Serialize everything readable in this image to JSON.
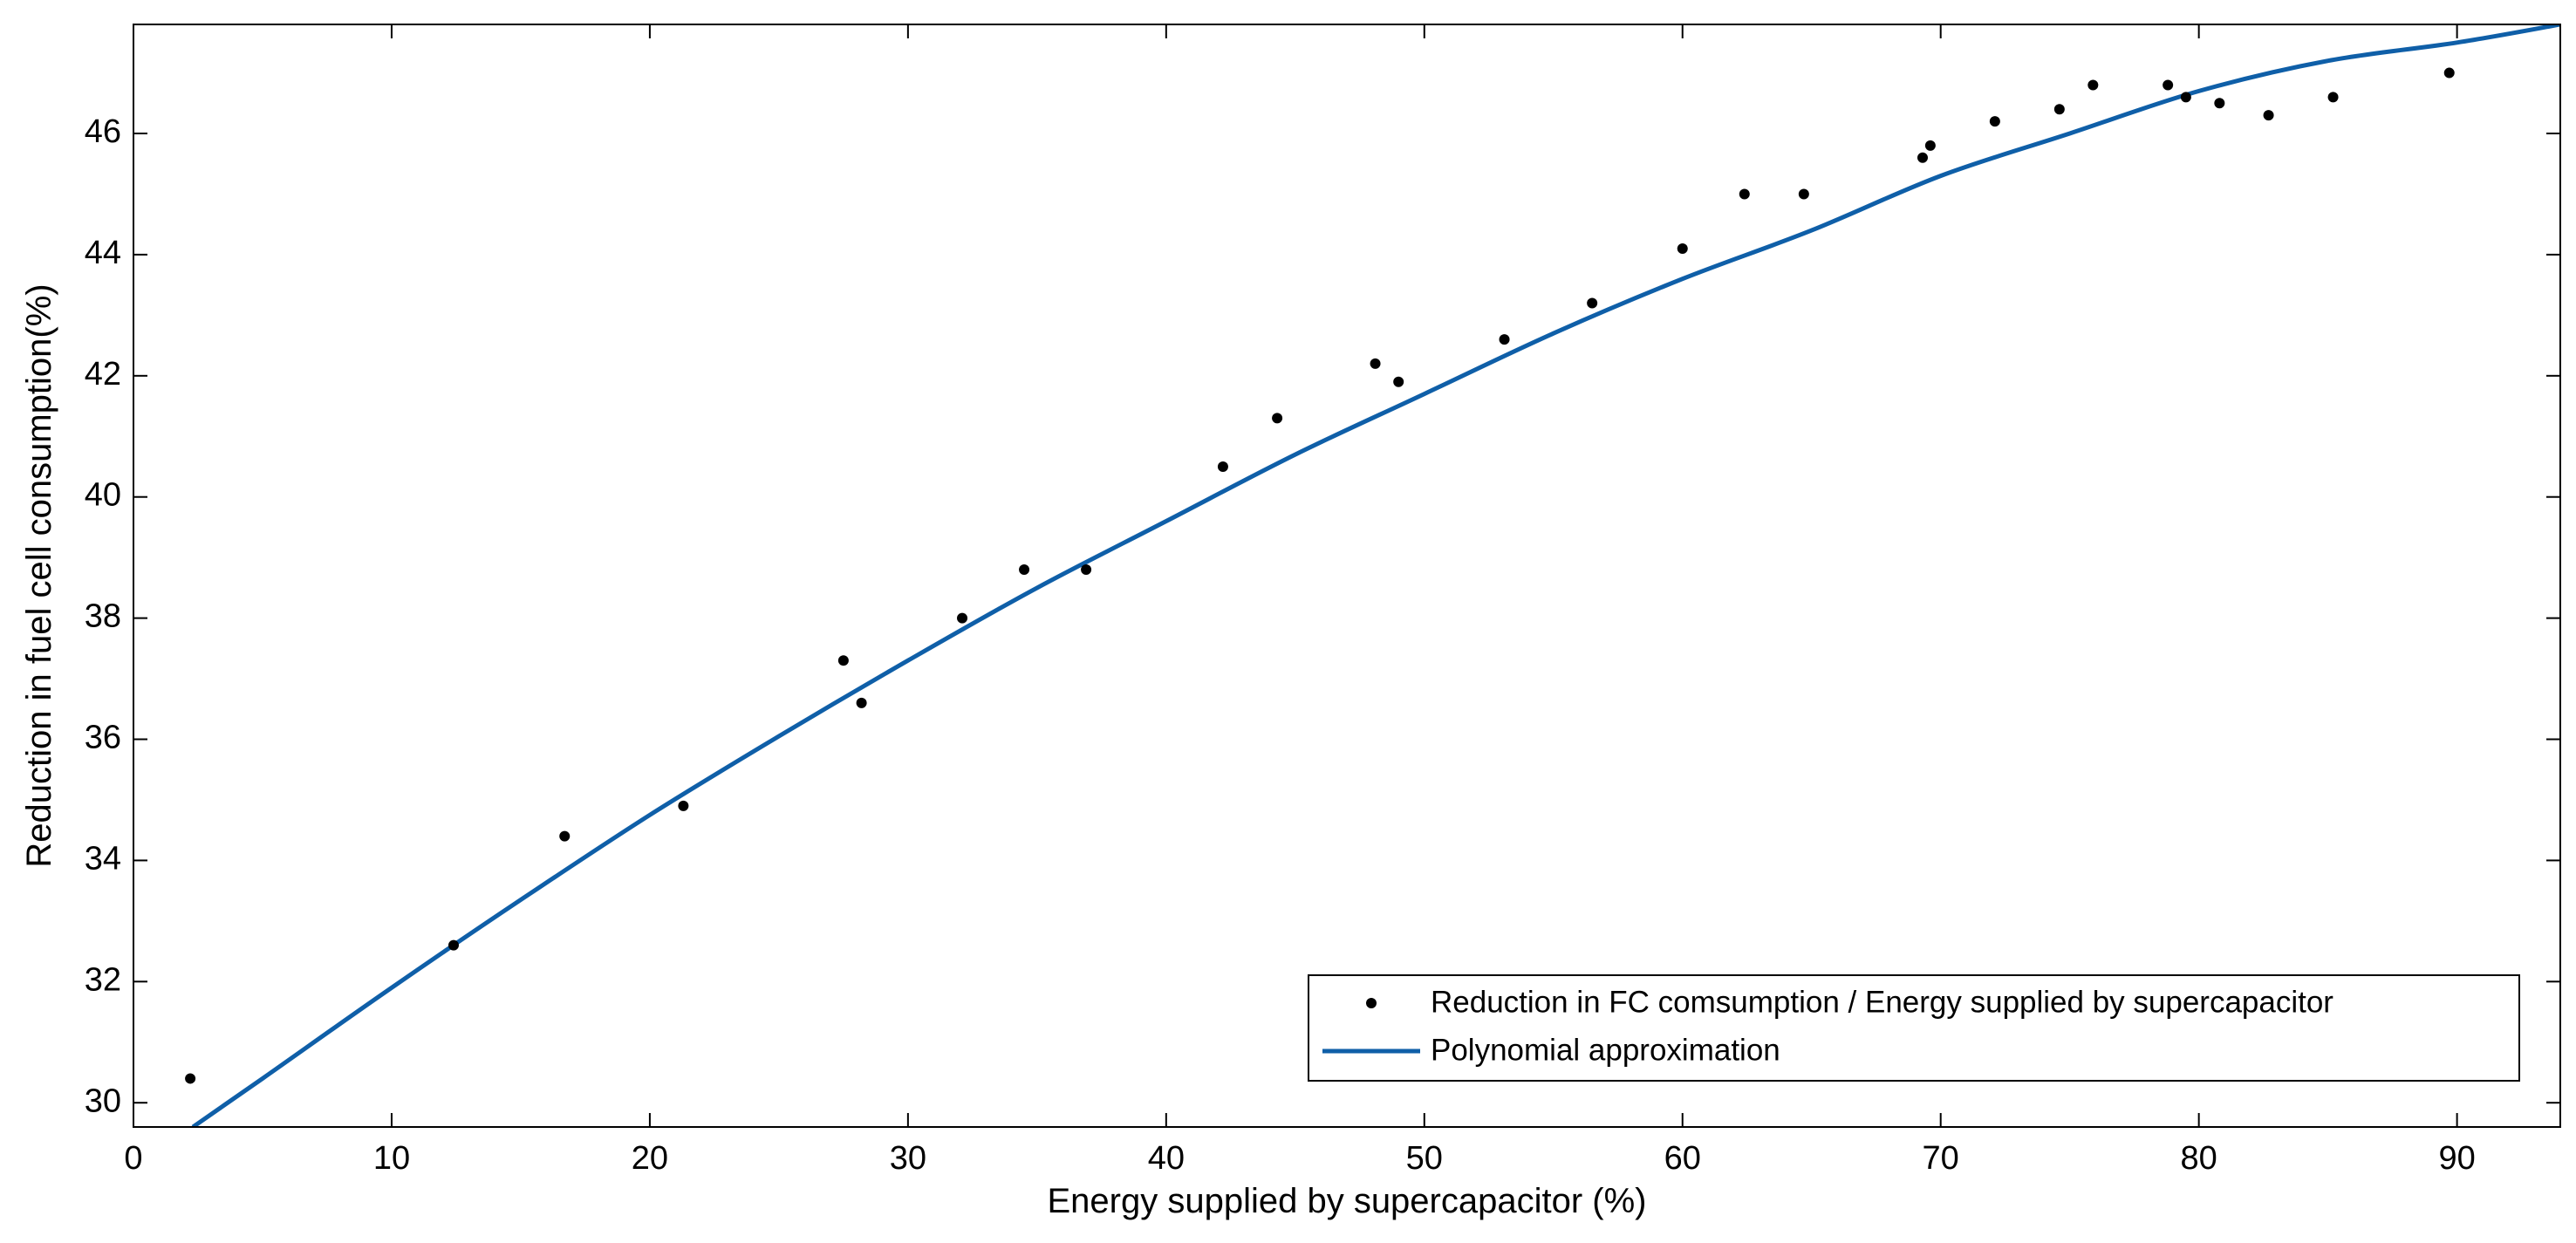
{
  "chart_data": {
    "type": "scatter",
    "xlabel": "Energy supplied by supercapacitor (%)",
    "ylabel": "Reduction in fuel cell consumption(%)",
    "xlim": [
      0,
      94
    ],
    "ylim": [
      29.6,
      47.8
    ],
    "xticks": [
      0,
      10,
      20,
      30,
      40,
      50,
      60,
      70,
      80,
      90
    ],
    "yticks": [
      30,
      32,
      34,
      36,
      38,
      40,
      42,
      44,
      46
    ],
    "grid": false,
    "legend_position": "bottom-right",
    "series": [
      {
        "name": "Reduction in FC comsumption / Energy supplied by supercapacitor",
        "kind": "scatter",
        "color": "#000000",
        "x": [
          2.2,
          12.4,
          16.7,
          21.3,
          27.5,
          28.2,
          32.1,
          34.5,
          36.9,
          42.2,
          44.3,
          48.1,
          49.0,
          53.1,
          56.5,
          60.0,
          62.4,
          64.7,
          69.3,
          69.6,
          72.1,
          74.6,
          75.9,
          78.8,
          79.5,
          80.8,
          82.7,
          85.2,
          89.7
        ],
        "y": [
          30.4,
          32.6,
          34.4,
          34.9,
          37.3,
          36.6,
          38.0,
          38.8,
          38.8,
          40.5,
          41.3,
          42.2,
          41.9,
          42.6,
          43.2,
          44.1,
          45.0,
          45.0,
          45.6,
          45.8,
          46.2,
          46.4,
          46.8,
          46.8,
          46.6,
          46.5,
          46.3,
          46.6,
          47.0
        ]
      },
      {
        "name": "Polynomial approximation",
        "kind": "line",
        "color": "#0f5fa8",
        "x": [
          2.3,
          5,
          10,
          15,
          20,
          25,
          30,
          35,
          40,
          45,
          50,
          55,
          60,
          65,
          70,
          75,
          80,
          85,
          90,
          94
        ],
        "y": [
          29.6,
          30.4,
          31.9,
          33.35,
          34.75,
          36.05,
          37.3,
          38.5,
          39.6,
          40.7,
          41.7,
          42.7,
          43.6,
          44.4,
          45.3,
          46.0,
          46.7,
          47.2,
          47.5,
          47.8
        ]
      }
    ]
  }
}
